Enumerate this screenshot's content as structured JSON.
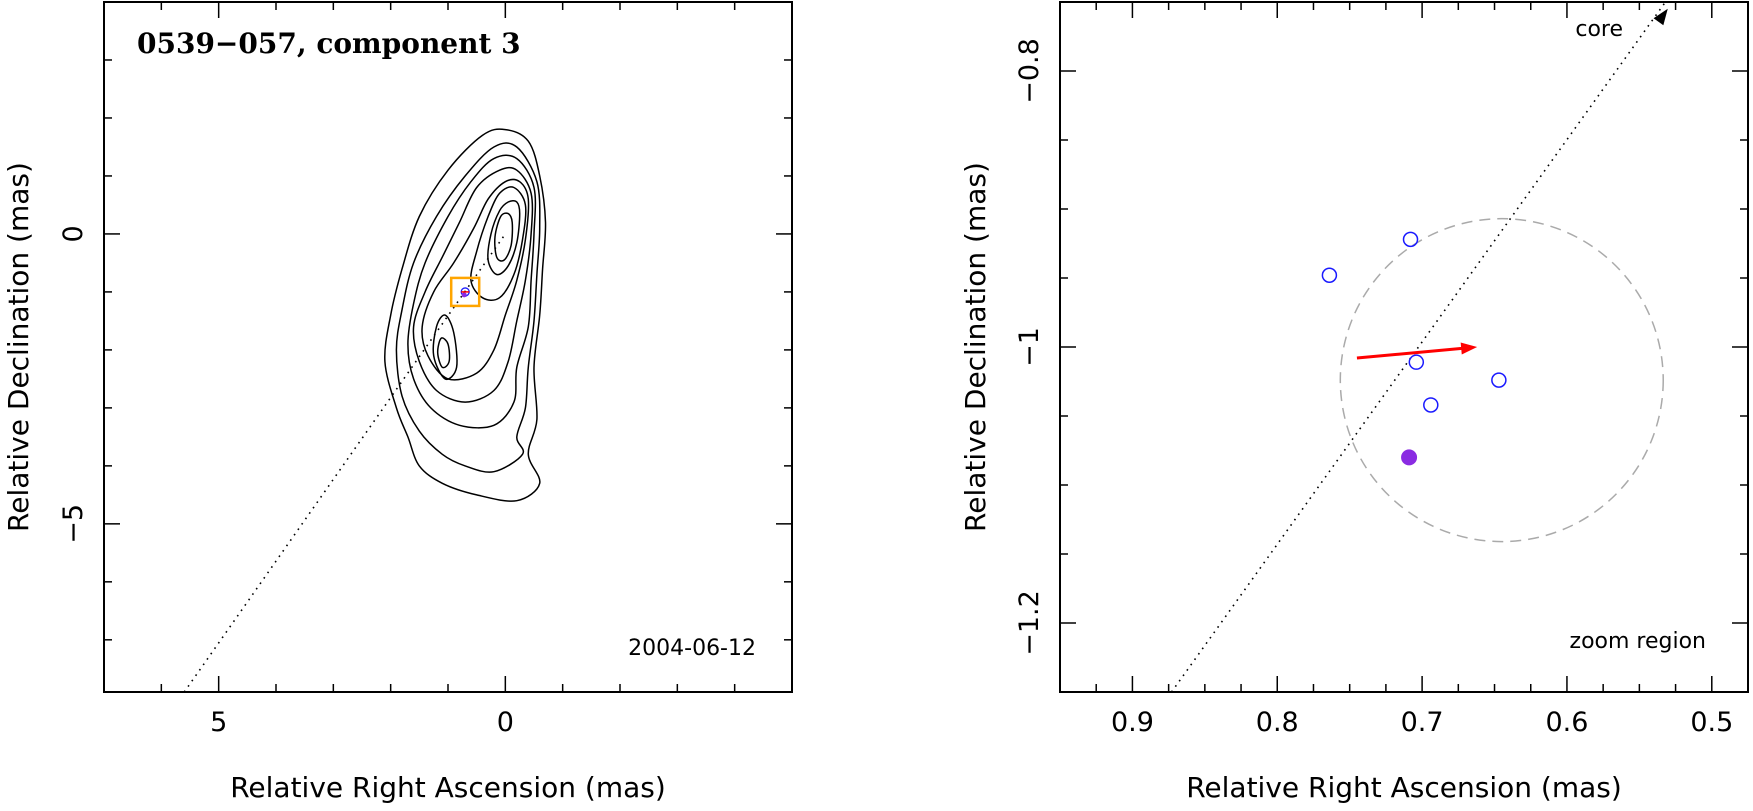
{
  "chart_data": [
    {
      "type": "contour",
      "title": "0539−057, component 3",
      "annotation": "2004-06-12",
      "xlabel": "Relative Right Ascension (mas)",
      "ylabel": "Relative Declination (mas)",
      "xlim": [
        7.0,
        -5.0
      ],
      "ylim": [
        -7.9,
        4.0
      ],
      "xticks": [
        {
          "value": 5,
          "label": "5"
        },
        {
          "value": 0,
          "label": "0"
        }
      ],
      "yticks": [
        {
          "value": 0,
          "label": "0"
        },
        {
          "value": -5,
          "label": "−5"
        }
      ],
      "jet_direction_line": [
        [
          5.6,
          -7.9
        ],
        [
          0.0,
          0.0
        ]
      ],
      "marker_box_center": [
        0.7,
        -1.0
      ],
      "contour_levels": [
        {
          "level": 1,
          "points": [
            [
              -0.6,
              1.0
            ],
            [
              -0.7,
              0.2
            ],
            [
              -0.65,
              -0.6
            ],
            [
              -0.6,
              -1.4
            ],
            [
              -0.5,
              -2.3
            ],
            [
              -0.55,
              -3.2
            ],
            [
              -0.4,
              -3.8
            ],
            [
              -0.6,
              -4.3
            ],
            [
              -0.2,
              -4.6
            ],
            [
              0.5,
              -4.5
            ],
            [
              1.1,
              -4.3
            ],
            [
              1.5,
              -4.0
            ],
            [
              1.7,
              -3.5
            ],
            [
              1.9,
              -3.0
            ],
            [
              2.1,
              -2.2
            ],
            [
              2.0,
              -1.4
            ],
            [
              1.8,
              -0.6
            ],
            [
              1.5,
              0.3
            ],
            [
              1.0,
              1.1
            ],
            [
              0.4,
              1.7
            ],
            [
              0.0,
              1.8
            ],
            [
              -0.4,
              1.6
            ]
          ]
        },
        {
          "level": 2,
          "points": [
            [
              -0.55,
              0.9
            ],
            [
              -0.6,
              0.1
            ],
            [
              -0.55,
              -0.7
            ],
            [
              -0.5,
              -1.5
            ],
            [
              -0.4,
              -2.3
            ],
            [
              -0.35,
              -3.0
            ],
            [
              -0.2,
              -3.5
            ],
            [
              -0.3,
              -3.8
            ],
            [
              0.2,
              -4.1
            ],
            [
              0.7,
              -4.0
            ],
            [
              1.1,
              -3.8
            ],
            [
              1.5,
              -3.4
            ],
            [
              1.8,
              -2.8
            ],
            [
              1.9,
              -2.0
            ],
            [
              1.8,
              -1.3
            ],
            [
              1.6,
              -0.5
            ],
            [
              1.2,
              0.3
            ],
            [
              0.7,
              1.0
            ],
            [
              0.2,
              1.5
            ],
            [
              -0.2,
              1.5
            ]
          ]
        },
        {
          "level": 3,
          "points": [
            [
              -0.5,
              0.8
            ],
            [
              -0.5,
              0.0
            ],
            [
              -0.45,
              -0.8
            ],
            [
              -0.4,
              -1.6
            ],
            [
              -0.2,
              -2.3
            ],
            [
              -0.15,
              -2.9
            ],
            [
              0.2,
              -3.3
            ],
            [
              0.8,
              -3.3
            ],
            [
              1.3,
              -3.0
            ],
            [
              1.6,
              -2.5
            ],
            [
              1.7,
              -1.9
            ],
            [
              1.6,
              -1.2
            ],
            [
              1.4,
              -0.5
            ],
            [
              1.0,
              0.3
            ],
            [
              0.6,
              0.9
            ],
            [
              0.2,
              1.3
            ],
            [
              -0.2,
              1.3
            ]
          ]
        },
        {
          "level": 4,
          "points": [
            [
              -0.45,
              0.7
            ],
            [
              -0.45,
              0.0
            ],
            [
              -0.35,
              -0.8
            ],
            [
              -0.2,
              -1.5
            ],
            [
              -0.05,
              -2.2
            ],
            [
              0.2,
              -2.7
            ],
            [
              0.7,
              -2.9
            ],
            [
              1.2,
              -2.7
            ],
            [
              1.5,
              -2.2
            ],
            [
              1.6,
              -1.6
            ],
            [
              1.4,
              -1.0
            ],
            [
              1.1,
              -0.4
            ],
            [
              0.8,
              0.2
            ],
            [
              0.5,
              0.8
            ],
            [
              0.1,
              1.1
            ],
            [
              -0.2,
              1.1
            ]
          ]
        },
        {
          "level": 5,
          "points": [
            [
              -0.4,
              0.6
            ],
            [
              -0.35,
              -0.1
            ],
            [
              -0.2,
              -0.8
            ],
            [
              0.0,
              -1.4
            ],
            [
              0.2,
              -2.0
            ],
            [
              0.5,
              -2.4
            ],
            [
              1.0,
              -2.5
            ],
            [
              1.35,
              -2.1
            ],
            [
              1.45,
              -1.6
            ],
            [
              1.25,
              -1.0
            ],
            [
              0.9,
              -0.5
            ],
            [
              0.55,
              0.1
            ],
            [
              0.3,
              0.6
            ],
            [
              0.0,
              0.9
            ],
            [
              -0.25,
              0.9
            ]
          ]
        },
        {
          "level": 6,
          "points": [
            [
              -0.35,
              0.5
            ],
            [
              -0.3,
              -0.1
            ],
            [
              -0.15,
              -0.7
            ],
            [
              0.1,
              -1.1
            ],
            [
              0.4,
              -1.1
            ],
            [
              0.6,
              -0.8
            ],
            [
              0.5,
              -0.3
            ],
            [
              0.3,
              0.3
            ],
            [
              0.1,
              0.7
            ],
            [
              -0.15,
              0.8
            ]
          ]
        },
        {
          "level": 7,
          "points": [
            [
              -0.25,
              0.35
            ],
            [
              -0.2,
              -0.15
            ],
            [
              -0.05,
              -0.55
            ],
            [
              0.15,
              -0.7
            ],
            [
              0.3,
              -0.45
            ],
            [
              0.25,
              0.0
            ],
            [
              0.1,
              0.4
            ],
            [
              -0.05,
              0.55
            ],
            [
              -0.2,
              0.55
            ]
          ]
        },
        {
          "level": 8,
          "points": [
            [
              -0.12,
              0.2
            ],
            [
              -0.1,
              -0.2
            ],
            [
              0.02,
              -0.45
            ],
            [
              0.15,
              -0.4
            ],
            [
              0.18,
              -0.05
            ],
            [
              0.08,
              0.3
            ],
            [
              -0.05,
              0.35
            ]
          ]
        },
        {
          "level": 9,
          "points": [
            [
              0.9,
              -1.7
            ],
            [
              0.85,
              -2.3
            ],
            [
              1.05,
              -2.5
            ],
            [
              1.25,
              -2.1
            ],
            [
              1.2,
              -1.6
            ],
            [
              1.05,
              -1.4
            ]
          ]
        },
        {
          "level": 10,
          "points": [
            [
              1.0,
              -1.9
            ],
            [
              0.98,
              -2.2
            ],
            [
              1.1,
              -2.3
            ],
            [
              1.18,
              -2.05
            ],
            [
              1.12,
              -1.8
            ]
          ]
        }
      ]
    },
    {
      "type": "scatter",
      "title": "",
      "xlabel": "Relative Right Ascension (mas)",
      "ylabel": "Relative Declination (mas)",
      "xlim": [
        0.95,
        0.475
      ],
      "ylim": [
        -1.25,
        -0.75
      ],
      "xticks": [
        {
          "value": 0.9,
          "label": "0.9"
        },
        {
          "value": 0.8,
          "label": "0.8"
        },
        {
          "value": 0.7,
          "label": "0.7"
        },
        {
          "value": 0.6,
          "label": "0.6"
        },
        {
          "value": 0.5,
          "label": "0.5"
        }
      ],
      "yticks": [
        {
          "value": -0.8,
          "label": "−0.8"
        },
        {
          "value": -1.0,
          "label": "−1"
        },
        {
          "value": -1.2,
          "label": "−1.2"
        }
      ],
      "annotations": {
        "core_label": "core",
        "region_label": "zoom region"
      },
      "jet_direction_line": [
        [
          0.873,
          -1.25
        ],
        [
          0.532,
          -0.75
        ]
      ],
      "open_points": [
        {
          "x": 0.708,
          "y": -0.922
        },
        {
          "x": 0.764,
          "y": -0.948
        },
        {
          "x": 0.704,
          "y": -1.011
        },
        {
          "x": 0.694,
          "y": -1.042
        },
        {
          "x": 0.647,
          "y": -1.024
        }
      ],
      "filled_points": [
        {
          "x": 0.709,
          "y": -1.08
        }
      ],
      "velocity_arrow": {
        "from": [
          0.745,
          -1.008
        ],
        "to": [
          0.662,
          -1.0
        ]
      },
      "error_circle": {
        "center": [
          0.645,
          -1.024
        ],
        "radius": 0.117
      },
      "colors": {
        "open_point": "#1a1aff",
        "filled_point": "#8a2be2",
        "arrow": "#ff0000",
        "circle": "#aaaaaa",
        "box": "#ffa500"
      }
    }
  ]
}
